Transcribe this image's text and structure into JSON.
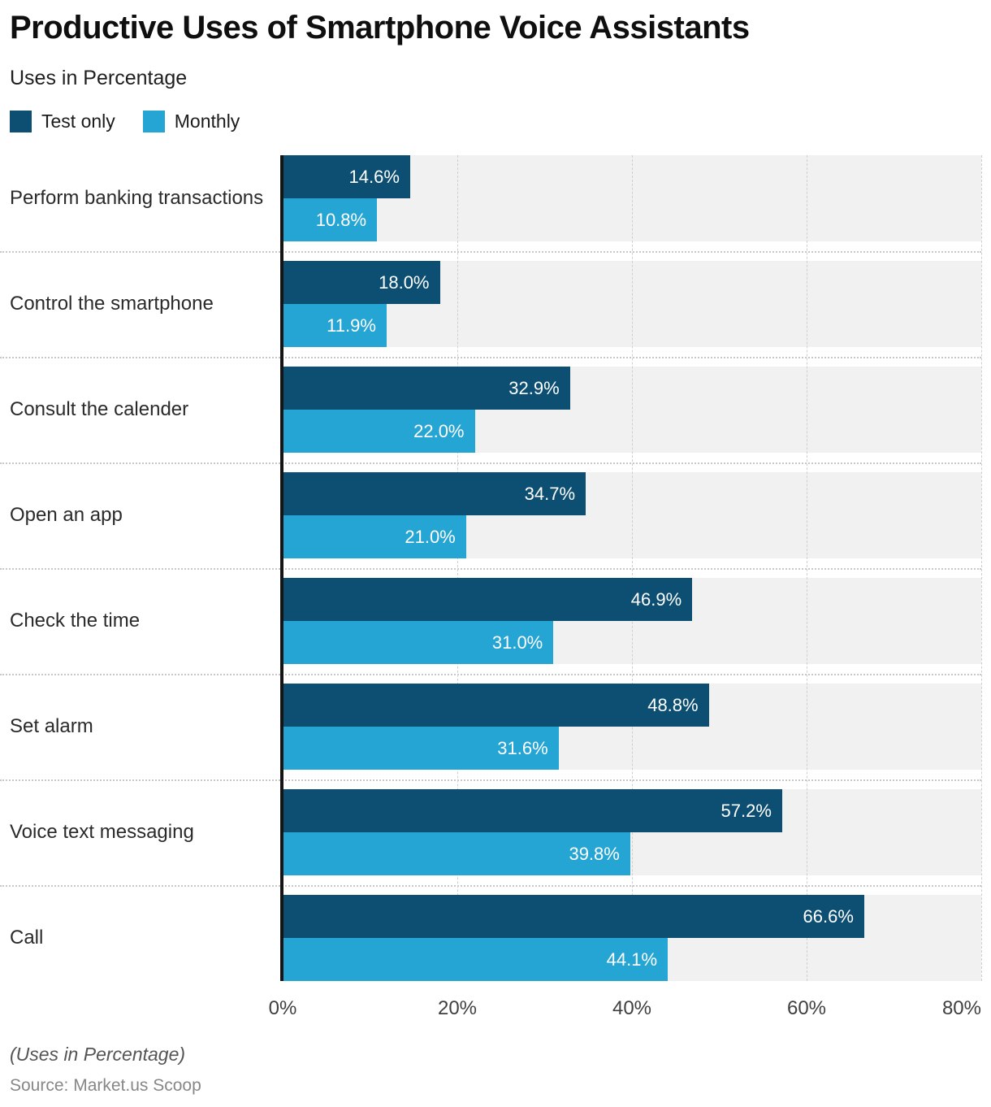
{
  "header": {
    "title": "Productive Uses of Smartphone Voice Assistants",
    "subtitle": "Uses in Percentage"
  },
  "legend": [
    {
      "label": "Test only",
      "color": "#0c4f73"
    },
    {
      "label": "Monthly",
      "color": "#25a5d4"
    }
  ],
  "chart_data": {
    "type": "bar",
    "orientation": "horizontal",
    "title": "Productive Uses of Smartphone Voice Assistants",
    "subtitle": "Uses in Percentage",
    "categories": [
      "Perform banking transactions",
      "Control the smartphone",
      "Consult the calender",
      "Open an app",
      "Check the time",
      "Set alarm",
      "Voice text messaging",
      "Call"
    ],
    "series": [
      {
        "name": "Test only",
        "color": "#0c4f73",
        "values": [
          14.6,
          18.0,
          32.9,
          34.7,
          46.9,
          48.8,
          57.2,
          66.6
        ]
      },
      {
        "name": "Monthly",
        "color": "#25a5d4",
        "values": [
          10.8,
          11.9,
          22.0,
          21.0,
          31.0,
          31.6,
          39.8,
          44.1
        ]
      }
    ],
    "value_suffix": "%",
    "xlim": [
      0,
      80
    ],
    "x_ticks": [
      "0%",
      "20%",
      "40%",
      "60%",
      "80%"
    ],
    "grid": "vertical-dashed",
    "legend_position": "top-left",
    "plot_background": "#f1f1f1"
  },
  "footer": {
    "note": "(Uses in Percentage)",
    "source": "Source: Market.us Scoop"
  }
}
